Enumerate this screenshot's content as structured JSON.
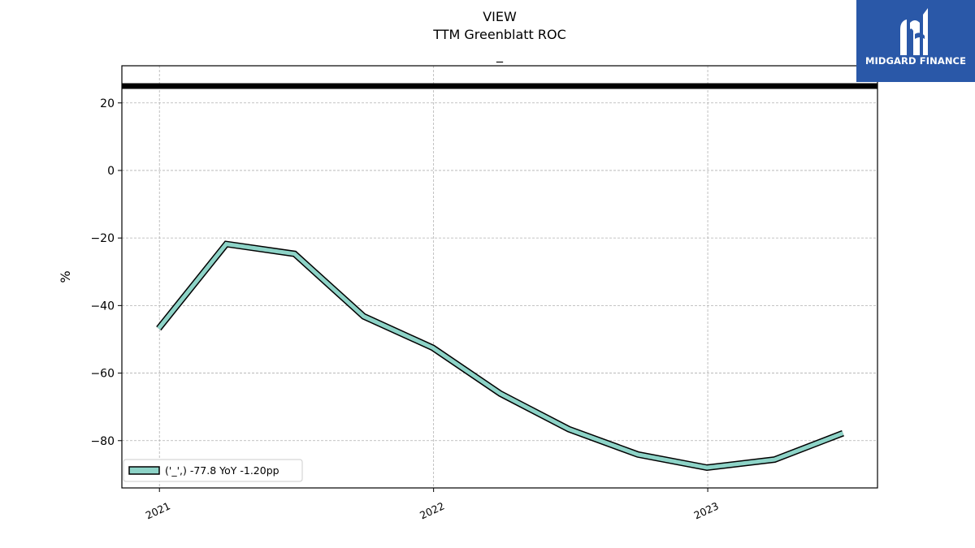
{
  "title": {
    "line1": "VIEW",
    "line2": "TTM Greenblatt ROC",
    "line3": "_"
  },
  "logo": {
    "text": "MIDGARD FINANCE",
    "background": "#2a58a8"
  },
  "colors": {
    "series": "#8dd3c7",
    "series_edge": "#000000",
    "reference_line": "#000000",
    "grid": "#b0b0b0"
  },
  "chart_data": {
    "type": "line",
    "title": "VIEW\nTTM Greenblatt ROC\n_",
    "xlabel": "",
    "ylabel": "%",
    "xlim": [
      "2020-11-12",
      "2023-08-15"
    ],
    "ylim": [
      -94,
      31
    ],
    "x_ticks": [
      "2021-01-01",
      "2022-01-01",
      "2023-01-01"
    ],
    "x_tick_labels": [
      "2021",
      "2022",
      "2023"
    ],
    "y_ticks": [
      -80,
      -60,
      -40,
      -20,
      0,
      20
    ],
    "y_tick_labels": [
      "−80",
      "−60",
      "−40",
      "−20",
      "0",
      "20"
    ],
    "grid": true,
    "legend_position": "lower-left",
    "series": [
      {
        "name": "('_',) -77.8 YoY -1.20pp",
        "x": [
          "2020-12-31",
          "2021-03-31",
          "2021-06-30",
          "2021-09-30",
          "2021-12-31",
          "2022-03-31",
          "2022-06-30",
          "2022-09-30",
          "2022-12-31",
          "2023-03-31",
          "2023-06-30"
        ],
        "values": [
          -46.8,
          -21.8,
          -24.7,
          -43.2,
          -52.5,
          -66.1,
          -76.6,
          -84.1,
          -88.0,
          -85.6,
          -77.8
        ]
      }
    ],
    "reference_lines": [
      {
        "axis": "y",
        "value": 25.0
      }
    ]
  }
}
